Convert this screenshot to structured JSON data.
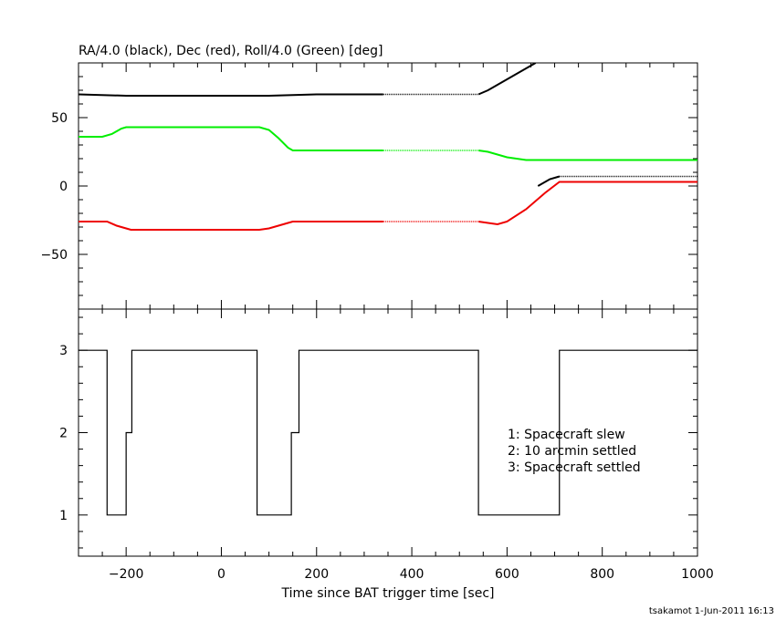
{
  "chart_data": [
    {
      "type": "line",
      "title": "RA/4.0 (black), Dec (red), Roll/4.0 (Green) [deg]",
      "ylim": [
        -90,
        90
      ],
      "xlim": [
        -300,
        1000
      ],
      "yticks": [
        -50,
        0,
        50
      ],
      "series": [
        {
          "color": "#000000",
          "x": [
            -300,
            -200,
            0,
            100,
            200,
            300,
            340,
            420,
            540,
            560,
            600,
            640,
            660
          ],
          "y": [
            67,
            66,
            66,
            66,
            67,
            67,
            67,
            67,
            67,
            70,
            78,
            86,
            90
          ],
          "dotted_from": 340,
          "dotted_to": 540
        },
        {
          "color": "#000000",
          "x": [
            665,
            690,
            710,
            1000
          ],
          "y": [
            0,
            5,
            7,
            7
          ],
          "dotted_from": 710,
          "dotted_to": 1000
        },
        {
          "color": "#00ee00",
          "x": [
            -300,
            -250,
            -230,
            -210,
            -200,
            80,
            100,
            120,
            140,
            150,
            340,
            420,
            540,
            560,
            600,
            640,
            700,
            1000
          ],
          "y": [
            36,
            36,
            38,
            42,
            43,
            43,
            41,
            35,
            28,
            26,
            26,
            26,
            26,
            25,
            21,
            19,
            19,
            19
          ],
          "dotted_from": 340,
          "dotted_to": 540
        },
        {
          "color": "#ee0000",
          "x": [
            -300,
            -240,
            -220,
            -200,
            -190,
            80,
            100,
            120,
            140,
            150,
            340,
            420,
            540,
            560,
            580,
            600,
            640,
            680,
            710,
            1000
          ],
          "y": [
            -26,
            -26,
            -29,
            -31,
            -32,
            -32,
            -31,
            -29,
            -27,
            -26,
            -26,
            -26,
            -26,
            -27,
            -28,
            -26,
            -17,
            -5,
            3,
            3
          ],
          "dotted_from": 340,
          "dotted_to": 540
        }
      ]
    },
    {
      "type": "line",
      "xlabel": "Time since BAT trigger time [sec]",
      "ylim": [
        0.5,
        3.5
      ],
      "xlim": [
        -300,
        1000
      ],
      "yticks": [
        1,
        2,
        3
      ],
      "xticks": [
        -200,
        0,
        200,
        400,
        600,
        800,
        1000
      ],
      "step": {
        "x": [
          -300,
          -240,
          -240,
          -200,
          -200,
          -188,
          -188,
          75,
          75,
          147,
          147,
          163,
          163,
          540,
          540,
          710,
          710,
          1000
        ],
        "y": [
          3,
          3,
          1,
          1,
          2,
          2,
          3,
          3,
          1,
          1,
          2,
          2,
          3,
          3,
          1,
          1,
          3,
          3
        ]
      },
      "annotations": [
        "1: Spacecraft slew",
        "2: 10 arcmin settled",
        "3: Spacecraft settled"
      ]
    }
  ],
  "footer": "tsakamot  1-Jun-2011 16:13"
}
